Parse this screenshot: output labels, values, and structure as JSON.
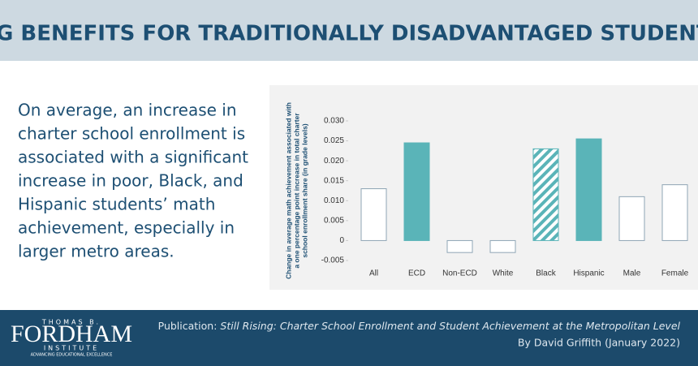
{
  "header": {
    "title": "BIG BENEFITS FOR TRADITIONALLY DISADVANTAGED STUDENTS"
  },
  "summary": {
    "lines": [
      "On average, an increase in",
      "charter school enrollment is",
      "associated with a significant",
      "increase in poor, Black, and",
      "Hispanic students’ math",
      "achievement, especially in",
      "larger metro areas."
    ]
  },
  "chart_data": {
    "type": "bar",
    "ylabel": [
      "Change in average math achievement associated with",
      "a one percentage point increase in total charter",
      "school enrollment share (in grade levels)"
    ],
    "categories": [
      "All",
      "ECD",
      "Non-ECD",
      "White",
      "Black",
      "Hispanic",
      "Male",
      "Female"
    ],
    "values": [
      0.013,
      0.0245,
      -0.003,
      -0.003,
      0.023,
      0.0255,
      0.011,
      0.014
    ],
    "color": "#5ab4b8",
    "bar_styles": [
      "outline",
      "filled",
      "outline",
      "outline",
      "hatched",
      "filled",
      "outline",
      "outline"
    ],
    "ylim": [
      -0.005,
      0.03
    ],
    "yticks": [
      -0.005,
      0,
      0.005,
      {
        "value": 0.01,
        "label": "0.010"
      },
      0.015,
      {
        "value": 0.02,
        "label": "0.020"
      },
      0.025,
      {
        "value": 0.03,
        "label": "0.030"
      }
    ],
    "grid": false
  },
  "footer": {
    "logo": {
      "top": "THOMAS B.",
      "name": "FORDHAM",
      "sub": "INSTITUTE",
      "tagline": "ADVANCING EDUCATIONAL EXCELLENCE"
    },
    "publication_label": "Publication:",
    "publication_title": "Still Rising: Charter School Enrollment and Student Achievement at the Metropolitan Level",
    "byline": "By David Griffith (January 2022)"
  }
}
